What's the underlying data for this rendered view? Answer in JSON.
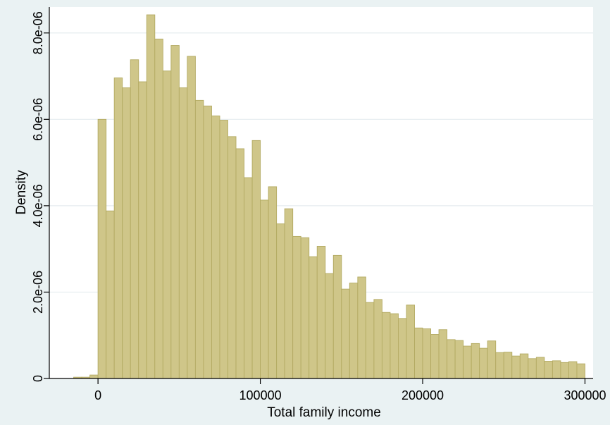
{
  "chart_data": {
    "type": "bar",
    "subtype": "histogram",
    "title": "",
    "xlabel": "Total family income",
    "ylabel": "Density",
    "xlim": [
      -30000,
      305000
    ],
    "ylim": [
      0,
      8.6e-06
    ],
    "x_ticks": [
      {
        "value": 0,
        "label": "0"
      },
      {
        "value": 100000,
        "label": "100000"
      },
      {
        "value": 200000,
        "label": "200000"
      },
      {
        "value": 300000,
        "label": "300000"
      }
    ],
    "y_ticks": [
      {
        "value": 0,
        "label": "0"
      },
      {
        "value": 2e-06,
        "label": "2.0e-06"
      },
      {
        "value": 4e-06,
        "label": "4.0e-06"
      },
      {
        "value": 6e-06,
        "label": "6.0e-06"
      },
      {
        "value": 8e-06,
        "label": "8.0e-06"
      }
    ],
    "grid": "horizontal",
    "legend": "none",
    "bin_width": 5000,
    "bin_start": -20000,
    "values": [
      0.0,
      3e-08,
      3e-08,
      8e-08,
      6e-06,
      3.88e-06,
      6.96e-06,
      6.73e-06,
      7.38e-06,
      6.87e-06,
      8.42e-06,
      7.86e-06,
      7.12e-06,
      7.71e-06,
      6.73e-06,
      7.46e-06,
      6.44e-06,
      6.31e-06,
      6.08e-06,
      5.98e-06,
      5.6e-06,
      5.32e-06,
      4.65e-06,
      5.51e-06,
      4.13e-06,
      4.44e-06,
      3.58e-06,
      3.93e-06,
      3.29e-06,
      3.26e-06,
      2.82e-06,
      3.06e-06,
      2.43e-06,
      2.85e-06,
      2.07e-06,
      2.21e-06,
      2.35e-06,
      1.76e-06,
      1.83e-06,
      1.53e-06,
      1.5e-06,
      1.39e-06,
      1.7e-06,
      1.17e-06,
      1.15e-06,
      1.02e-06,
      1.13e-06,
      9e-07,
      8.8e-07,
      7.5e-07,
      8.1e-07,
      7e-07,
      8.7e-07,
      6e-07,
      6.1e-07,
      5.2e-07,
      5.7e-07,
      4.6e-07,
      4.9e-07,
      4e-07,
      4.1e-07,
      3.7e-07,
      3.9e-07,
      3.4e-07
    ],
    "colors": {
      "bar_fill": "#cfc689",
      "bar_stroke": "#b3aa62",
      "plot_background": "#ffffff",
      "outer_background": "#eaf2f3",
      "gridline": "#e5ecef",
      "axis": "#000000"
    }
  }
}
